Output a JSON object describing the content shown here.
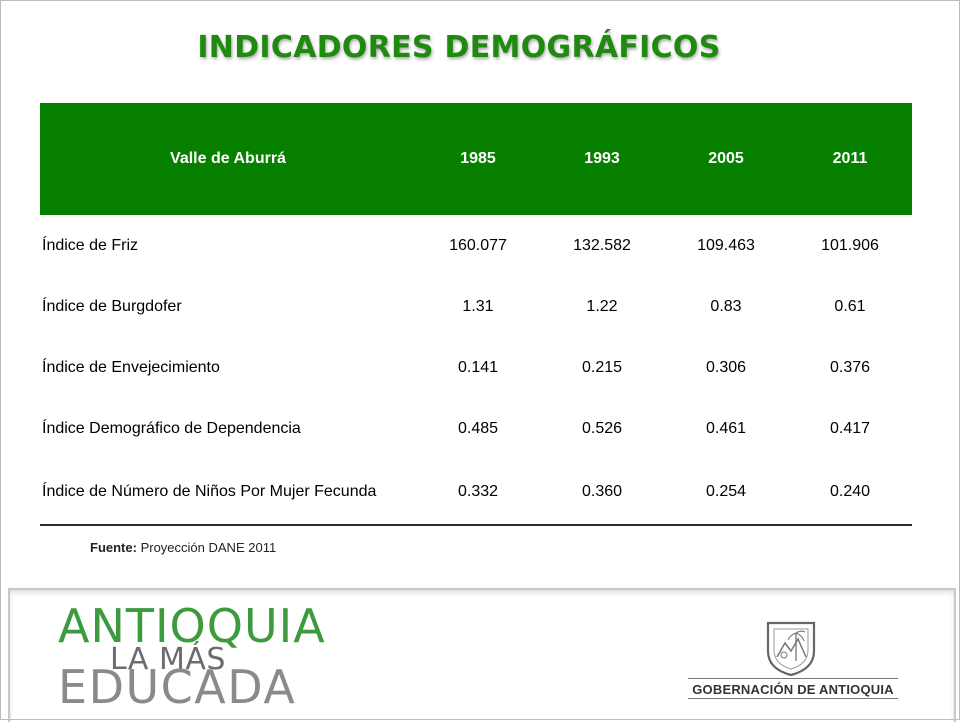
{
  "title": "INDICADORES DEMOGRÁFICOS",
  "table": {
    "headers": [
      "Valle de Aburrá",
      "1985",
      "1993",
      "2005",
      "2011"
    ],
    "rows": [
      {
        "label": "Índice de Friz",
        "values": [
          "160.077",
          "132.582",
          "109.463",
          "101.906"
        ]
      },
      {
        "label": "Índice de Burgdofer",
        "values": [
          "1.31",
          "1.22",
          "0.83",
          "0.61"
        ]
      },
      {
        "label": "Índice de Envejecimiento",
        "values": [
          "0.141",
          "0.215",
          "0.306",
          "0.376"
        ]
      },
      {
        "label": "Índice Demográfico de Dependencia",
        "values": [
          "0.485",
          "0.526",
          "0.461",
          "0.417"
        ]
      },
      {
        "label": "Índice de Número de Niños Por Mujer Fecunda",
        "values": [
          "0.332",
          "0.360",
          "0.254",
          "0.240"
        ]
      }
    ]
  },
  "source": {
    "prefix": "Fuente:",
    "text": "Proyección DANE 2011"
  },
  "logo_left": {
    "line1": "ANTIOQUIA",
    "line2": "LA MÁS",
    "line3": "EDUCADA"
  },
  "logo_right": {
    "text": "GOBERNACIÓN DE ANTIOQUIA"
  },
  "colors": {
    "accent": "#078000",
    "title": "#1f8a0f"
  }
}
